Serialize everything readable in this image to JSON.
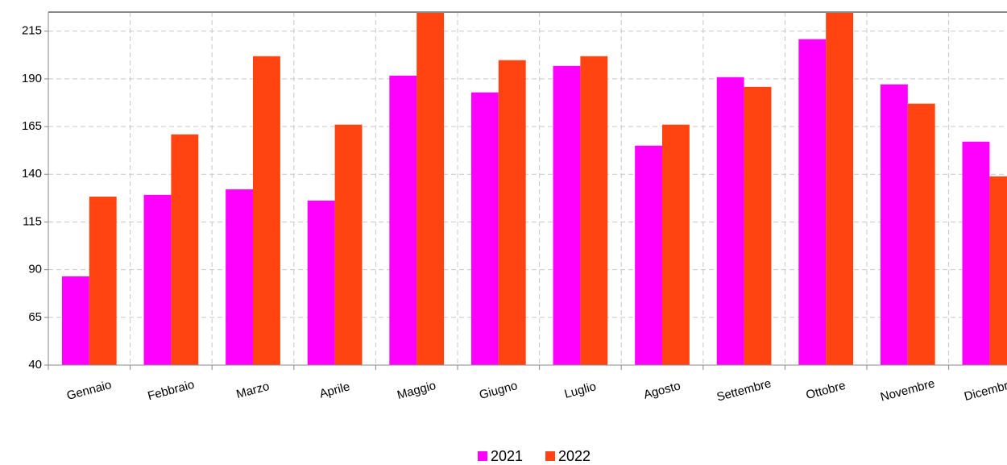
{
  "chart_data": {
    "type": "bar",
    "categories": [
      "Gennaio",
      "Febbraio",
      "Marzo",
      "Aprile",
      "Maggio",
      "Giugno",
      "Luglio",
      "Agosto",
      "Settembre",
      "Ottobre",
      "Novembre",
      "Dicembre"
    ],
    "series": [
      {
        "name": "2021",
        "color": "#ff00ff",
        "values": [
          86.5,
          129.2,
          132.1,
          126.2,
          191.7,
          182.9,
          196.8,
          155.0,
          190.9,
          210.8,
          187.1,
          157.1
        ]
      },
      {
        "name": "2022",
        "color": "#ff4411",
        "values": [
          128.3,
          160.9,
          201.9,
          166.0,
          230,
          199.8,
          201.9,
          166.0,
          185.8,
          232,
          177.0,
          138.9
        ]
      }
    ],
    "ylim": [
      40,
      225
    ],
    "yticks": [
      40,
      65,
      90,
      115,
      140,
      165,
      190,
      215
    ],
    "grid": true
  }
}
